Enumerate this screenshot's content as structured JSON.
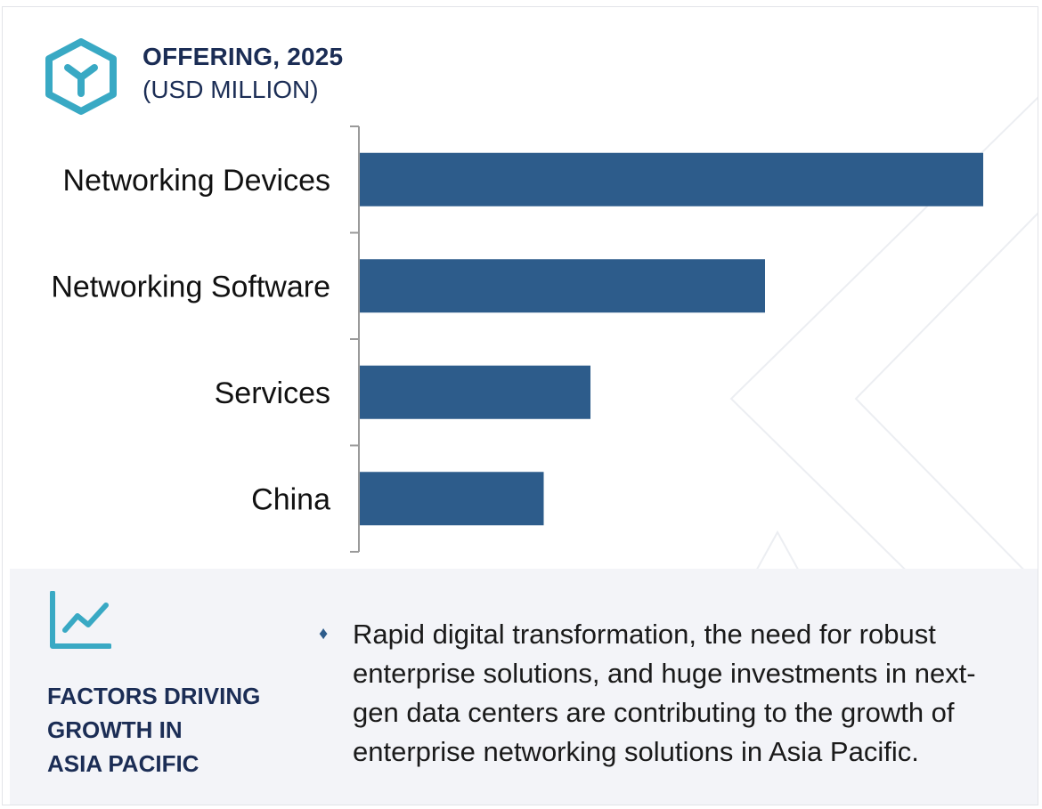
{
  "header": {
    "title_line1": "OFFERING, 2025",
    "title_line2": "(USD MILLION)",
    "logo_icon": "hexagon-y-icon"
  },
  "chart_data": {
    "type": "bar",
    "orientation": "horizontal",
    "categories": [
      "Networking Devices",
      "Networking Software",
      "Services",
      "China"
    ],
    "values": [
      100,
      65,
      37,
      29.5
    ],
    "title": "OFFERING, 2025",
    "subtitle": "(USD MILLION)",
    "xlabel": "",
    "ylabel": "",
    "xlim": [
      0,
      100
    ],
    "grid": false,
    "bar_color": "#2d5c8b",
    "axis_color": "#9a9a9a"
  },
  "factors": {
    "icon": "trend-chart-icon",
    "title_lines": [
      "FACTORS DRIVING",
      "GROWTH IN",
      "ASIA PACIFIC"
    ],
    "bullet_icon": "diamond-bullet-icon",
    "items": [
      "Rapid digital transformation, the need for robust enterprise solutions, and huge investments in next-gen data centers are contributing to the growth of enterprise networking solutions in Asia Pacific."
    ]
  },
  "colors": {
    "title": "#1b2d55",
    "accent_teal": "#39a9c4",
    "bar": "#2d5c8b",
    "panel_bg": "#f3f4f8"
  }
}
